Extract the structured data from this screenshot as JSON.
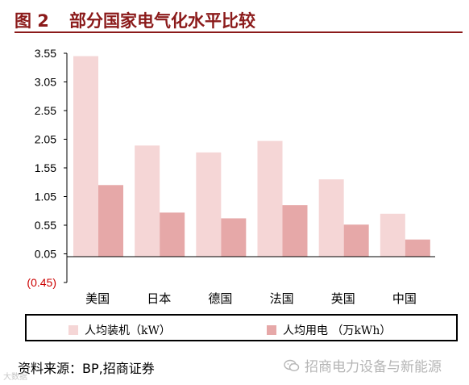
{
  "header": {
    "figure_label": "图 2",
    "title": "部分国家电气化水平比较"
  },
  "chart_data": {
    "type": "bar",
    "categories": [
      "美国",
      "日本",
      "德国",
      "法国",
      "英国",
      "中国"
    ],
    "series": [
      {
        "name": "人均装机（kW）",
        "values": [
          3.5,
          1.94,
          1.82,
          2.02,
          1.35,
          0.75
        ],
        "color": "#f5d6d6"
      },
      {
        "name": "人均用电 （万kWh）",
        "values": [
          1.25,
          0.77,
          0.67,
          0.9,
          0.56,
          0.3
        ],
        "color": "#e6a8a8"
      }
    ],
    "ylim": [
      -0.45,
      3.55
    ],
    "yticks": [
      "3.55",
      "3.05",
      "2.55",
      "2.05",
      "1.55",
      "1.05",
      "0.55",
      "0.05",
      "(0.45)"
    ],
    "ytick_values": [
      3.55,
      3.05,
      2.55,
      2.05,
      1.55,
      1.05,
      0.55,
      0.05,
      -0.45
    ],
    "negative_tick_color": "#cc0000",
    "baseline": 0,
    "grid": false,
    "legend_position": "bottom"
  },
  "legend": {
    "item1": "人均装机（kW）",
    "item2": "人均用电 （万kWh）"
  },
  "footer": {
    "source": "资料来源：BP,招商证券",
    "watermark": "招商电力设备与新能源",
    "corner_mark": "大数据"
  }
}
